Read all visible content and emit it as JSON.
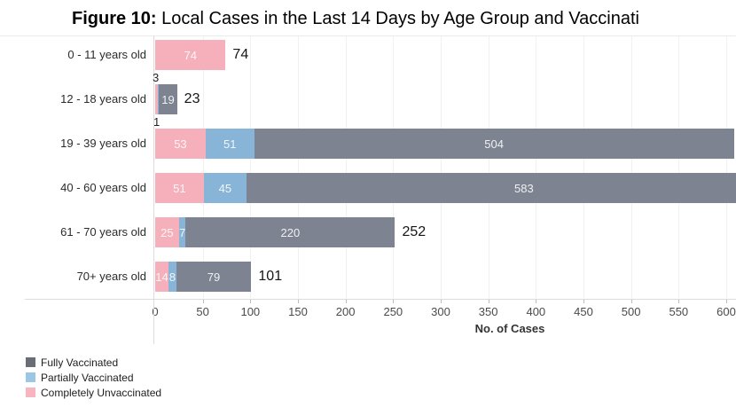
{
  "title": {
    "prefix": "Figure 10:",
    "rest": " Local Cases in the Last 14 Days by Age Group and Vaccinati"
  },
  "chart_data": {
    "type": "bar",
    "orientation": "horizontal",
    "stacked": true,
    "title": "Figure 10: Local Cases in the Last 14 Days by Age Group and Vaccinati",
    "xlabel": "No. of Cases",
    "xlim": [
      0,
      600
    ],
    "xticks": [
      0,
      50,
      100,
      150,
      200,
      250,
      300,
      350,
      400,
      450,
      500,
      550,
      600
    ],
    "grid": "vertical-light",
    "categories": [
      "0 - 11 years old",
      "12 - 18 years old",
      "19 - 39 years old",
      "40 - 60 years old",
      "61 - 70 years old",
      "70+ years old"
    ],
    "series": [
      {
        "name": "Completely Unvaccinated",
        "key": "unvaccinated",
        "color": "#f5b0bb",
        "values": [
          74,
          3,
          53,
          51,
          25,
          14
        ]
      },
      {
        "name": "Partially Vaccinated",
        "key": "partial",
        "color": "#88b5d7",
        "values": [
          0,
          1,
          51,
          45,
          7,
          8
        ]
      },
      {
        "name": "Fully Vaccinated",
        "key": "full",
        "color": "#7d8390",
        "values": [
          0,
          19,
          504,
          583,
          220,
          79
        ]
      }
    ],
    "total_labels": [
      "74",
      "23",
      "",
      "",
      "252",
      "101"
    ],
    "callouts": [
      {
        "row": 1,
        "above": "3",
        "below": "1"
      }
    ]
  },
  "legend": {
    "items": [
      {
        "label": "Fully Vaccinated",
        "color": "#696e76"
      },
      {
        "label": "Partially Vaccinated",
        "color": "#9cc7e4"
      },
      {
        "label": "Completely Unvaccinated",
        "color": "#f8b4bf"
      }
    ]
  }
}
